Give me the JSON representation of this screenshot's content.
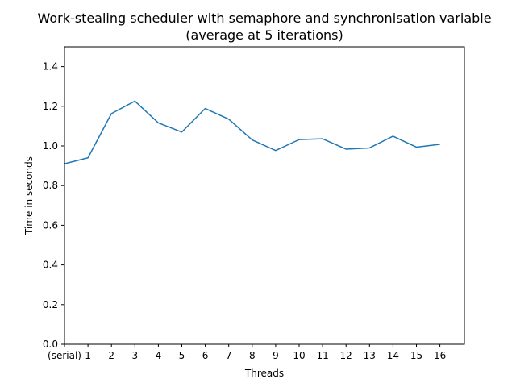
{
  "chart_data": {
    "type": "line",
    "title_line1": "Work-stealing scheduler with semaphore and synchronisation variable",
    "title_line2": "(average at 5 iterations)",
    "xlabel": "Threads",
    "ylabel": "Time in seconds",
    "categories": [
      "(serial)",
      "1",
      "2",
      "3",
      "4",
      "5",
      "6",
      "7",
      "8",
      "9",
      "10",
      "11",
      "12",
      "13",
      "14",
      "15",
      "16"
    ],
    "series": [
      {
        "values": [
          0.91,
          0.94,
          1.163,
          1.226,
          1.116,
          1.07,
          1.189,
          1.135,
          1.03,
          0.977,
          1.032,
          1.036,
          0.984,
          0.99,
          1.049,
          0.994,
          1.008
        ],
        "color": "#1f77b4"
      }
    ],
    "ylim": [
      0.0,
      1.5
    ],
    "yticks": [
      "0.0",
      "0.2",
      "0.4",
      "0.6",
      "0.8",
      "1.0",
      "1.2",
      "1.4"
    ],
    "grid": false,
    "legend": false
  }
}
